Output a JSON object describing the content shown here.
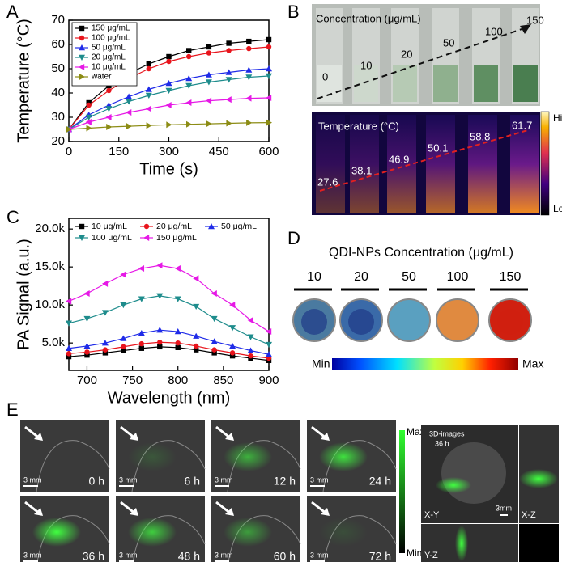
{
  "chart_data": [
    {
      "type": "line",
      "xlabel": "Time (s)",
      "ylabel": "Temperature (°C)",
      "x": [
        0,
        60,
        120,
        180,
        240,
        300,
        360,
        420,
        480,
        540,
        600
      ],
      "xlim": [
        0,
        600
      ],
      "xticks": [
        0,
        150,
        300,
        450,
        600
      ],
      "ylim": [
        20,
        70
      ],
      "yticks": [
        20,
        30,
        40,
        50,
        60,
        70
      ],
      "legend": "upper left",
      "series": [
        {
          "name": "150 μg/mL",
          "color": "#000000",
          "marker": "square",
          "values": [
            25,
            36,
            43,
            48,
            52,
            55,
            57.5,
            59,
            60.5,
            61.3,
            62
          ]
        },
        {
          "name": "100 μg/mL",
          "color": "#e8141c",
          "marker": "circle",
          "values": [
            25,
            35,
            41,
            46,
            50,
            53,
            55,
            56.5,
            57.5,
            58.3,
            59
          ]
        },
        {
          "name": "50  μg/mL",
          "color": "#1f2be8",
          "marker": "triangle-up",
          "values": [
            25,
            31,
            35,
            38.5,
            41.5,
            44,
            46,
            47.5,
            48.5,
            49.5,
            50
          ]
        },
        {
          "name": "20  μg/mL",
          "color": "#1e8c8c",
          "marker": "triangle-down",
          "values": [
            25,
            30,
            33.5,
            36.5,
            39,
            41,
            43,
            44.5,
            45.5,
            46.5,
            47
          ]
        },
        {
          "name": "10  μg/mL",
          "color": "#e619e6",
          "marker": "triangle-left",
          "values": [
            25,
            28,
            30,
            32,
            33.5,
            35,
            36,
            36.8,
            37.3,
            37.8,
            38
          ]
        },
        {
          "name": "water",
          "color": "#8c8c14",
          "marker": "triangle-right",
          "values": [
            25,
            25.5,
            26,
            26.3,
            26.6,
            26.9,
            27.1,
            27.3,
            27.5,
            27.7,
            27.8
          ]
        }
      ]
    },
    {
      "type": "line",
      "xlabel": "Wavelength (nm)",
      "ylabel": "PA Signal (a.u.)",
      "x": [
        680,
        700,
        720,
        740,
        760,
        780,
        800,
        820,
        840,
        860,
        880,
        900
      ],
      "xlim": [
        680,
        900
      ],
      "xticks": [
        700,
        750,
        800,
        850,
        900
      ],
      "ylim": [
        1400,
        21400
      ],
      "yticks": [
        {
          "value": 5000,
          "label": "5.0k"
        },
        {
          "value": 10000,
          "label": "10.0k"
        },
        {
          "value": 15000,
          "label": "15.0k"
        },
        {
          "value": 20000,
          "label": "20.0k"
        }
      ],
      "legend": "upper left",
      "series": [
        {
          "name": "10  μg/mL",
          "color": "#000000",
          "marker": "square",
          "values": [
            3200,
            3400,
            3700,
            4000,
            4300,
            4500,
            4400,
            4100,
            3700,
            3300,
            3000,
            2700
          ]
        },
        {
          "name": "20  μg/mL",
          "color": "#e8141c",
          "marker": "circle",
          "values": [
            3600,
            3800,
            4100,
            4500,
            4900,
            5100,
            5000,
            4600,
            4100,
            3700,
            3300,
            3000
          ]
        },
        {
          "name": "50  μg/mL",
          "color": "#1f2be8",
          "marker": "triangle-up",
          "values": [
            4300,
            4600,
            5000,
            5600,
            6300,
            6700,
            6500,
            5900,
            5200,
            4600,
            4000,
            3500
          ]
        },
        {
          "name": "100 μg/mL",
          "color": "#1e8c8c",
          "marker": "triangle-down",
          "values": [
            7600,
            8200,
            9000,
            10000,
            10800,
            11200,
            10800,
            9800,
            8200,
            7000,
            5800,
            4800
          ]
        },
        {
          "name": "150 μg/mL",
          "color": "#e619e6",
          "marker": "triangle-left",
          "values": [
            10500,
            11500,
            12800,
            14000,
            14800,
            15200,
            14800,
            13500,
            11500,
            10000,
            8000,
            6500
          ]
        }
      ]
    }
  ],
  "panels": {
    "labels": [
      "A",
      "B",
      "C",
      "D",
      "E"
    ],
    "b": {
      "photo_title": "Concentration (μg/mL)",
      "photo_labels": [
        "0",
        "10",
        "20",
        "50",
        "100",
        "150"
      ],
      "thermal_title": "Temperature (°C)",
      "thermal_values": [
        "27.6",
        "38.1",
        "46.9",
        "50.1",
        "58.8",
        "61.7"
      ],
      "high": "High",
      "low": "Low"
    },
    "d": {
      "title": "QDI-NPs Concentration (μg/mL)",
      "labels": [
        "10",
        "20",
        "50",
        "100",
        "150"
      ],
      "min": "Min",
      "max": "Max"
    },
    "e": {
      "times": [
        "0 h",
        "6 h",
        "12 h",
        "24 h",
        "36 h",
        "48 h",
        "60 h",
        "72 h"
      ],
      "scale": "3 mm",
      "max": "Max",
      "min": "Min",
      "title": "3D-images",
      "time": "36 h",
      "views": [
        "X-Y",
        "X-Z",
        "Y-Z"
      ],
      "scale3d": "3mm"
    }
  }
}
